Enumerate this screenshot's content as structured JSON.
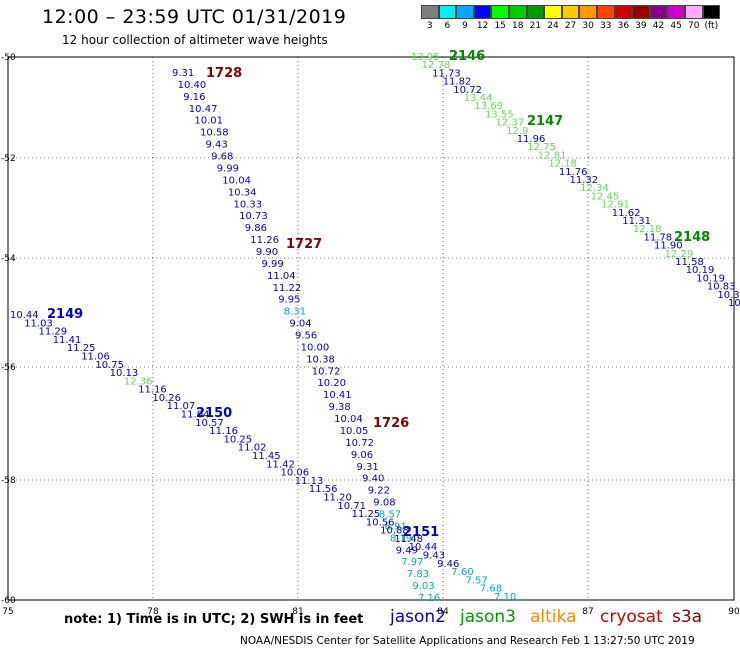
{
  "header": {
    "title": "12:00 – 23:59 UTC 01/31/2019",
    "subtitle": "12 hour collection of altimeter wave heights"
  },
  "legend": {
    "unit_label": "(ft)",
    "colors": [
      "#7f7f7f",
      "#00f0f0",
      "#00a8ff",
      "#0000ff",
      "#00ff00",
      "#00cc00",
      "#009900",
      "#ffff00",
      "#ffcc00",
      "#ff9900",
      "#ff4400",
      "#cc0000",
      "#990000",
      "#880088",
      "#cc00cc",
      "#ffaaff",
      "#000000"
    ],
    "labels": [
      "3",
      "6",
      "9",
      "12",
      "15",
      "18",
      "21",
      "24",
      "27",
      "30",
      "33",
      "36",
      "39",
      "42",
      "45",
      "70",
      "(ft)"
    ]
  },
  "axes": {
    "x_ticks": [
      "75",
      "78",
      "81",
      "84",
      "87",
      "90"
    ],
    "y_ticks": [
      "-50",
      "-52",
      "-54",
      "-56",
      "-58",
      "-60"
    ]
  },
  "colors": {
    "jason2": "#0000cc",
    "jason3": "#009900",
    "jason3_light": "#66dd55",
    "altika": "#ff8800",
    "cryosat": "#cc0000",
    "s3a": "#880000",
    "cyan": "#00aacc",
    "pass_red": "#880000",
    "pass_blue": "#0000cc",
    "pass_green": "#008800"
  },
  "passes": [
    {
      "label": "1728",
      "color": "pass_red"
    },
    {
      "label": "1727",
      "color": "pass_red"
    },
    {
      "label": "1726",
      "color": "pass_red"
    },
    {
      "label": "2146",
      "color": "pass_green"
    },
    {
      "label": "2147",
      "color": "pass_green"
    },
    {
      "label": "2148",
      "color": "pass_green"
    },
    {
      "label": "2149",
      "color": "pass_blue"
    },
    {
      "label": "2150",
      "color": "pass_blue"
    },
    {
      "label": "2151",
      "color": "pass_blue"
    }
  ],
  "track_red": {
    "values": [
      "9.31",
      "10.40",
      "9.16",
      "10.47",
      "10.01",
      "10.58",
      "9.43",
      "9.68",
      "9.99",
      "10.04",
      "10.34",
      "10.33",
      "10.73",
      "9.86",
      "11.26",
      "9.90",
      "9.99",
      "11.04",
      "11.22",
      "9.95",
      "8.31",
      "9.04",
      "9.56",
      "10.00",
      "10.38",
      "10.72",
      "10.20",
      "10.41",
      "9.38",
      "10.04",
      "10.05",
      "10.72",
      "9.06",
      "9.31",
      "9.40",
      "9.22",
      "9.08",
      "8.57",
      "8.91",
      "8.19",
      "9.49",
      "7.97",
      "7.83",
      "9.03",
      "7.16"
    ],
    "colors": [
      "b",
      "b",
      "b",
      "b",
      "b",
      "b",
      "b",
      "b",
      "b",
      "b",
      "b",
      "b",
      "b",
      "b",
      "b",
      "b",
      "b",
      "b",
      "b",
      "b",
      "c",
      "b",
      "b",
      "b",
      "b",
      "b",
      "b",
      "b",
      "b",
      "b",
      "b",
      "b",
      "b",
      "b",
      "b",
      "b",
      "b",
      "c",
      "c",
      "c",
      "b",
      "c",
      "c",
      "c",
      "c"
    ]
  },
  "track_green": {
    "values": [
      "13.95",
      "12.78",
      "11.73",
      "11.82",
      "10.72",
      "13.44",
      "13.69",
      "13.55",
      "12.37",
      "12.9",
      "11.96",
      "12.75",
      "12.81",
      "12.18",
      "11.76",
      "11.32",
      "12.34",
      "12.45",
      "12.91",
      "11.62",
      "11.31",
      "12.18",
      "11.78",
      "11.90",
      "12.29",
      "11.58",
      "10.19",
      "10.19",
      "10.83",
      "10.3",
      "10"
    ],
    "colors": [
      "l",
      "l",
      "b",
      "b",
      "b",
      "l",
      "l",
      "l",
      "l",
      "l",
      "b",
      "l",
      "l",
      "l",
      "b",
      "b",
      "l",
      "l",
      "l",
      "b",
      "b",
      "l",
      "b",
      "b",
      "l",
      "b",
      "b",
      "b",
      "b",
      "b",
      "b"
    ]
  },
  "track_blue": {
    "values": [
      "10.44",
      "11.03",
      "11.29",
      "11.41",
      "11.25",
      "11.06",
      "10.75",
      "10.13",
      "12.36",
      "11.16",
      "10.26",
      "11.07",
      "11.04",
      "10.57",
      "11.16",
      "10.25",
      "11.02",
      "11.45",
      "11.42",
      "10.06",
      "11.13",
      "11.56",
      "11.20",
      "10.71",
      "11.25",
      "10.56",
      "10.88",
      "11.48",
      "10.44",
      "9.43",
      "9.46",
      "7.60",
      "7.57",
      "7.68",
      "7.10"
    ],
    "colors": [
      "b",
      "b",
      "b",
      "b",
      "b",
      "b",
      "b",
      "b",
      "l",
      "b",
      "b",
      "b",
      "b",
      "b",
      "b",
      "b",
      "b",
      "b",
      "b",
      "b",
      "b",
      "b",
      "b",
      "b",
      "b",
      "b",
      "b",
      "b",
      "b",
      "b",
      "b",
      "c",
      "c",
      "c",
      "c"
    ]
  },
  "footer": {
    "note": "note:  1) Time is in UTC;  2) SWH is in feet",
    "satellites": [
      "jason2",
      "jason3",
      "altika",
      "cryosat",
      "s3a"
    ],
    "credit": "NOAA/NESDIS Center for Satellite Applications and Research    Feb  1 13:27:50 UTC 2019"
  }
}
